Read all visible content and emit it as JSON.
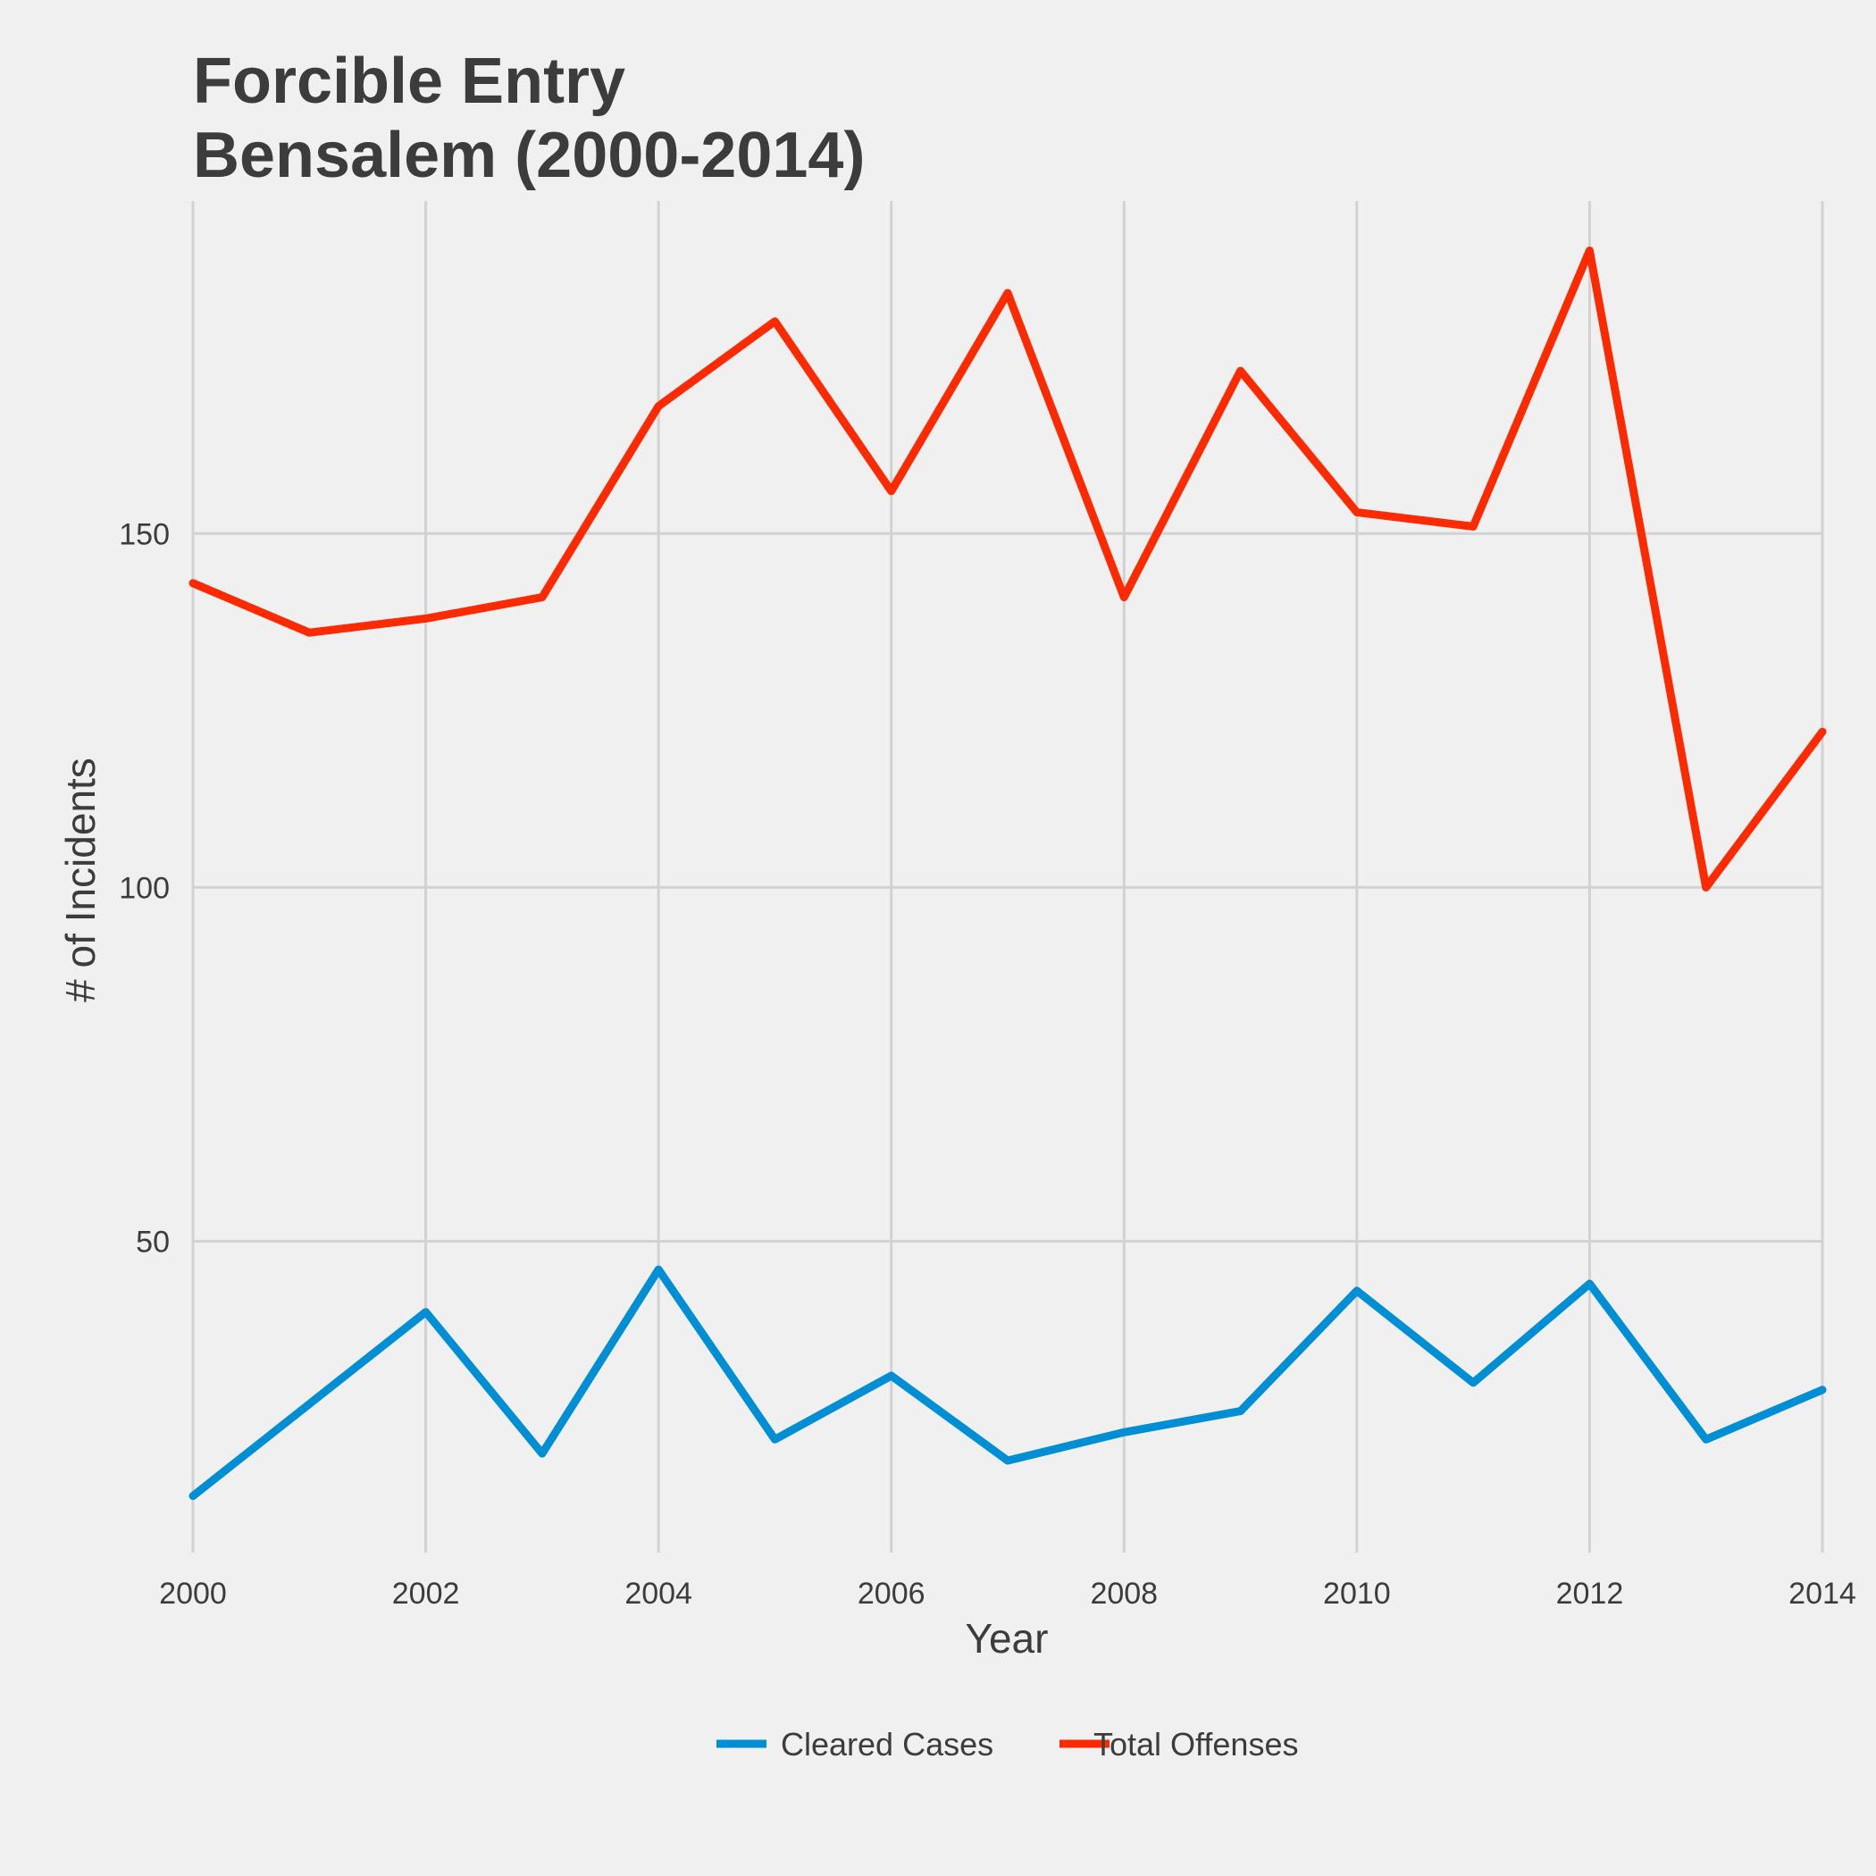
{
  "chart_data": {
    "type": "line",
    "title": "Forcible Entry",
    "subtitle": "Bensalem (2000-2014)",
    "xlabel": "Year",
    "ylabel": "# of Incidents",
    "x": [
      2000,
      2001,
      2002,
      2003,
      2004,
      2005,
      2006,
      2007,
      2008,
      2009,
      2010,
      2011,
      2012,
      2013,
      2014
    ],
    "x_ticks": [
      2000,
      2002,
      2004,
      2006,
      2008,
      2010,
      2012,
      2014
    ],
    "x_tick_labels": [
      "2000",
      "2002",
      "2004",
      "2006",
      "2008",
      "2010",
      "2012",
      "2014"
    ],
    "y_ticks": [
      50,
      100,
      150
    ],
    "y_tick_labels": [
      "50",
      "100",
      "150"
    ],
    "xlim": [
      2000,
      2014
    ],
    "ylim": [
      6,
      197
    ],
    "grid": true,
    "legend_position": "bottom",
    "series": [
      {
        "name": "Cleared Cases",
        "color": "#008fd5",
        "values": [
          14,
          27,
          40,
          20,
          46,
          22,
          31,
          19,
          23,
          26,
          43,
          30,
          44,
          22,
          29
        ]
      },
      {
        "name": "Total Offenses",
        "color": "#fc2a00",
        "values": [
          143,
          136,
          138,
          141,
          168,
          180,
          156,
          184,
          141,
          173,
          153,
          151,
          190,
          100,
          122
        ]
      }
    ]
  }
}
